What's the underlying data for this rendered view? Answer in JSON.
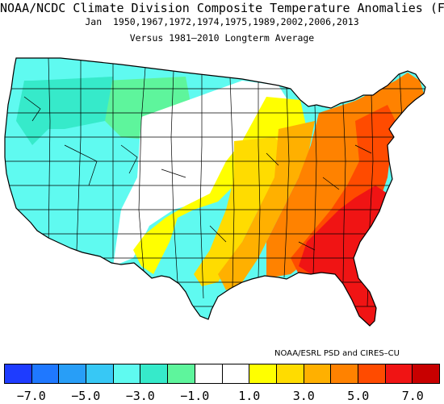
{
  "title": {
    "line1": "NOAA/NCDC Climate Division Composite Temperature Anomalies (F)",
    "line2": "Jan  1950,1967,1972,1974,1975,1989,2002,2006,2013",
    "line3": "Versus 1981–2010 Longterm Average"
  },
  "credit": "NOAA/ESRL PSD and CIRES–CU",
  "legend": {
    "colors": [
      "#1e3cff",
      "#1f78ff",
      "#289ef7",
      "#37c8f5",
      "#5ffaf0",
      "#36eaca",
      "#5ef59c",
      "#ffffff",
      "#ffffff",
      "#ffff00",
      "#ffdc00",
      "#ffb000",
      "#ff8200",
      "#ff4b00",
      "#f01414",
      "#c80000"
    ],
    "tick_labels": [
      "−7.0",
      "−5.0",
      "−3.0",
      "−1.0",
      "1.0",
      "3.0",
      "5.0",
      "7.0"
    ],
    "tick_values": [
      -7,
      -5,
      -3,
      -1,
      1,
      3,
      5,
      7
    ],
    "range": [
      -8,
      8
    ]
  },
  "map_colors": {
    "cyan": "#5ffaf0",
    "aqua_green": "#36eaca",
    "mint": "#5ef59c",
    "white": "#ffffff",
    "yellow": "#ffff00",
    "gold": "#ffdc00",
    "light_orange": "#ffb000",
    "orange": "#ff8200",
    "red_orange": "#ff4b00",
    "red": "#f01414"
  }
}
